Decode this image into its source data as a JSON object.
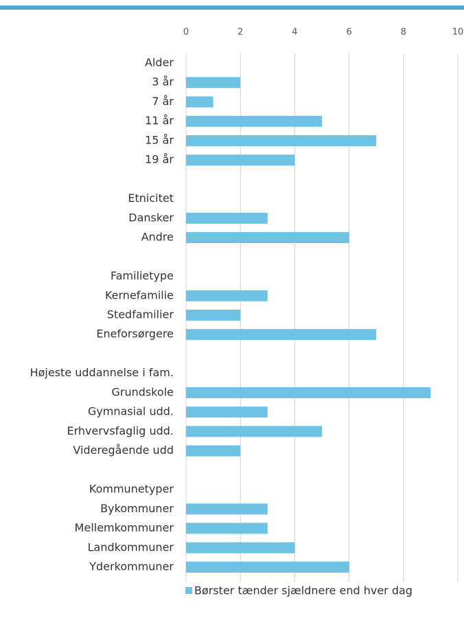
{
  "chart_data": {
    "type": "bar",
    "orientation": "horizontal",
    "categories": [
      "Alder",
      "3 år",
      "7 år",
      "11 år",
      "15 år",
      "19 år",
      null,
      "Etnicitet",
      "Dansker",
      "Andre",
      null,
      "Familietype",
      "Kernefamilie",
      "Stedfamilier",
      "Eneforsørgere",
      null,
      "Højeste uddannelse i fam.",
      "Grundskole",
      "Gymnasial udd.",
      "Erhvervsfaglig udd.",
      "Videregående udd",
      null,
      "Kommunetyper",
      "Bykommuner",
      "Mellemkommuner",
      "Landkommuner",
      "Yderkommuner"
    ],
    "series": [
      {
        "name": "Børster tænder sjældnere end hver dag",
        "color": "#6ec3e4",
        "values": [
          null,
          2,
          1,
          5,
          7,
          4,
          null,
          null,
          3,
          6,
          null,
          null,
          3,
          2,
          7,
          null,
          null,
          9,
          3,
          5,
          2,
          null,
          null,
          3,
          3,
          4,
          6
        ]
      }
    ],
    "xlim": [
      0,
      10
    ],
    "xticks": [
      0,
      2,
      4,
      6,
      8,
      10
    ],
    "grid": true,
    "legend": "bottom"
  }
}
